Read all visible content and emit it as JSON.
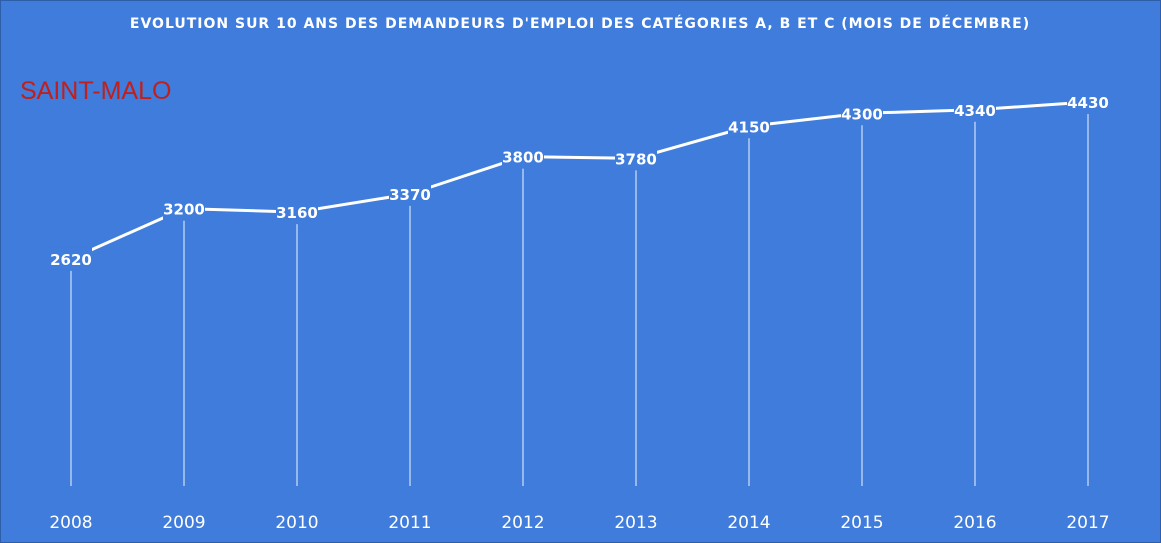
{
  "chart_data": {
    "type": "line",
    "title": "EVOLUTION SUR 10 ANS DES DEMANDEURS D'EMPLOI DES CATÉGORIES A, B ET C (MOIS DE DÉCEMBRE)",
    "subtitle": "SAINT-MALO",
    "categories": [
      "2008",
      "2009",
      "2010",
      "2011",
      "2012",
      "2013",
      "2014",
      "2015",
      "2016",
      "2017"
    ],
    "series": [
      {
        "values": [
          2620,
          3200,
          3160,
          3370,
          3800,
          3780,
          4150,
          4300,
          4340,
          4430
        ]
      }
    ],
    "ylim": [
      0,
      4430
    ],
    "grid": false,
    "drop_lines": true,
    "data_labels": true,
    "legend": "none"
  },
  "colors": {
    "background": "#3f7cdb",
    "line": "#ffffff",
    "text": "#ffffff",
    "subtitle": "#c0201c"
  }
}
